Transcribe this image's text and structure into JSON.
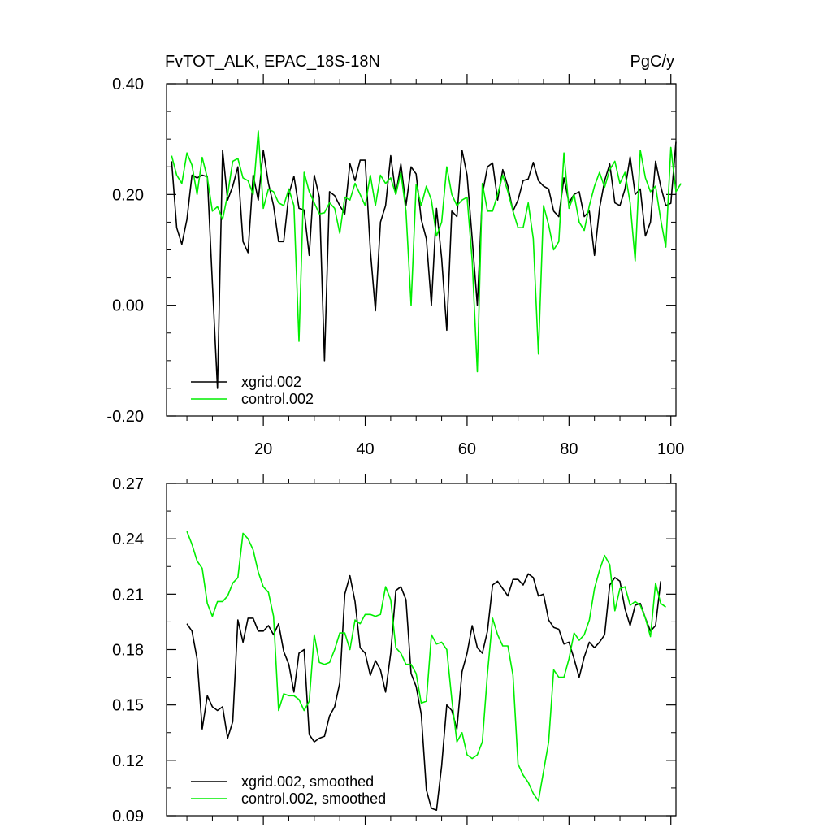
{
  "chart_data": [
    {
      "type": "line",
      "title_left": "FvTOT_ALK, EPAC_18S-18N",
      "title_right": "PgC/y",
      "xlim": [
        1,
        101
      ],
      "ylim": [
        -0.2,
        0.4
      ],
      "x_ticks": [
        20,
        40,
        60,
        80,
        100
      ],
      "x_tick_labels": [
        "20",
        "40",
        "60",
        "80",
        "100"
      ],
      "y_ticks": [
        -0.2,
        0.0,
        0.2,
        0.4
      ],
      "y_tick_labels": [
        "-0.20",
        "0.00",
        "0.20",
        "0.40"
      ],
      "legend_position": "bottom-left",
      "series": [
        {
          "name": "xgrid.002",
          "color": "#000000",
          "x_start": 2,
          "values": [
            0.26,
            0.14,
            0.11,
            0.155,
            0.235,
            0.23,
            0.235,
            0.232,
            0.04,
            -0.15,
            0.28,
            0.19,
            0.215,
            0.25,
            0.115,
            0.095,
            0.235,
            0.19,
            0.28,
            0.22,
            0.18,
            0.115,
            0.115,
            0.2,
            0.233,
            0.175,
            0.172,
            0.09,
            0.235,
            0.195,
            -0.1,
            0.205,
            0.198,
            0.18,
            0.165,
            0.256,
            0.225,
            0.262,
            0.262,
            0.1,
            -0.01,
            0.15,
            0.18,
            0.27,
            0.2,
            0.255,
            0.18,
            0.25,
            0.237,
            0.155,
            0.12,
            0,
            0.175,
            0.085,
            -0.045,
            0.17,
            0.16,
            0.28,
            0.235,
            0.12,
            0,
            0.2,
            0.25,
            0.257,
            0.19,
            0.245,
            0.215,
            0.17,
            0.19,
            0.225,
            0.228,
            0.258,
            0.225,
            0.215,
            0.21,
            0.17,
            0.16,
            0.23,
            0.185,
            0.2,
            0.205,
            0.16,
            0.17,
            0.09,
            0.175,
            0.225,
            0.255,
            0.185,
            0.18,
            0.21,
            0.268,
            0.2,
            0.21,
            0.125,
            0.15,
            0.26,
            0.215,
            0.18,
            0.184,
            0.295
          ]
        },
        {
          "name": "control.002",
          "color": "#00ee00",
          "x_start": 2,
          "values": [
            0.27,
            0.235,
            0.22,
            0.275,
            0.253,
            0.2,
            0.267,
            0.23,
            0.17,
            0.178,
            0.155,
            0.2,
            0.26,
            0.265,
            0.23,
            0.225,
            0.2,
            0.315,
            0.175,
            0.21,
            0.205,
            0.185,
            0.18,
            0.21,
            0.18,
            -0.065,
            0.24,
            0.205,
            0.185,
            0.165,
            0.167,
            0.185,
            0.175,
            0.13,
            0.195,
            0.19,
            0.22,
            0.2,
            0.18,
            0.235,
            0.18,
            0.235,
            0.22,
            0.23,
            0.2,
            0.24,
            0.17,
            0.0,
            0.218,
            0.18,
            0.215,
            0.19,
            0.125,
            0.15,
            0.25,
            0.2,
            0.18,
            0.19,
            0.195,
            0.08,
            -0.12,
            0.22,
            0.17,
            0.17,
            0.2,
            0.235,
            0.205,
            0.17,
            0.14,
            0.14,
            0.185,
            0.12,
            -0.088,
            0.18,
            0.145,
            0.1,
            0.115,
            0.275,
            0.175,
            0.2,
            0.15,
            0.135,
            0.18,
            0.215,
            0.24,
            0.213,
            0.245,
            0.26,
            0.22,
            0.24,
            0.185,
            0.08,
            0.28,
            0.23,
            0.205,
            0.215,
            0.155,
            0.105,
            0.285,
            0.205,
            0.22
          ]
        }
      ]
    },
    {
      "type": "line",
      "xlim": [
        1,
        101
      ],
      "ylim": [
        0.09,
        0.27
      ],
      "x_ticks": [
        20,
        40,
        60,
        80,
        100
      ],
      "y_ticks": [
        0.09,
        0.12,
        0.15,
        0.18,
        0.21,
        0.24,
        0.27
      ],
      "y_tick_labels": [
        "0.09",
        "0.12",
        "0.15",
        "0.18",
        "0.21",
        "0.24",
        "0.27"
      ],
      "legend_position": "bottom-left",
      "series": [
        {
          "name": "xgrid.002, smoothed",
          "color": "#000000",
          "x_start": 5,
          "values": [
            0.194,
            0.19,
            0.175,
            0.137,
            0.155,
            0.149,
            0.147,
            0.149,
            0.132,
            0.141,
            0.196,
            0.184,
            0.197,
            0.197,
            0.19,
            0.19,
            0.193,
            0.188,
            0.194,
            0.179,
            0.172,
            0.157,
            0.178,
            0.18,
            0.134,
            0.13,
            0.132,
            0.133,
            0.144,
            0.149,
            0.162,
            0.21,
            0.22,
            0.206,
            0.181,
            0.178,
            0.166,
            0.174,
            0.169,
            0.157,
            0.178,
            0.212,
            0.214,
            0.207,
            0.167,
            0.16,
            0.145,
            0.104,
            0.094,
            0.093,
            0.117,
            0.15,
            0.147,
            0.137,
            0.168,
            0.178,
            0.193,
            0.181,
            0.178,
            0.19,
            0.215,
            0.217,
            0.213,
            0.209,
            0.218,
            0.218,
            0.215,
            0.221,
            0.219,
            0.209,
            0.21,
            0.196,
            0.192,
            0.191,
            0.183,
            0.184,
            0.175,
            0.165,
            0.176,
            0.184,
            0.181,
            0.184,
            0.188,
            0.215,
            0.219,
            0.217,
            0.202,
            0.193,
            0.204,
            0.205,
            0.197,
            0.19,
            0.193,
            0.217
          ]
        },
        {
          "name": "control.002, smoothed",
          "color": "#00ee00",
          "x_start": 5,
          "values": [
            0.244,
            0.237,
            0.228,
            0.224,
            0.205,
            0.198,
            0.206,
            0.206,
            0.209,
            0.216,
            0.219,
            0.243,
            0.24,
            0.234,
            0.222,
            0.214,
            0.211,
            0.198,
            0.147,
            0.156,
            0.155,
            0.155,
            0.153,
            0.147,
            0.152,
            0.188,
            0.173,
            0.172,
            0.173,
            0.18,
            0.189,
            0.189,
            0.18,
            0.196,
            0.194,
            0.199,
            0.199,
            0.198,
            0.199,
            0.214,
            0.207,
            0.181,
            0.178,
            0.172,
            0.172,
            0.167,
            0.151,
            0.152,
            0.188,
            0.183,
            0.184,
            0.18,
            0.153,
            0.13,
            0.135,
            0.123,
            0.121,
            0.123,
            0.13,
            0.167,
            0.197,
            0.188,
            0.182,
            0.182,
            0.166,
            0.118,
            0.112,
            0.108,
            0.102,
            0.098,
            0.114,
            0.13,
            0.169,
            0.165,
            0.165,
            0.175,
            0.189,
            0.185,
            0.188,
            0.196,
            0.213,
            0.223,
            0.231,
            0.226,
            0.201,
            0.213,
            0.214,
            0.204,
            0.206,
            0.204,
            0.197,
            0.187,
            0.216,
            0.205,
            0.203
          ]
        }
      ]
    }
  ]
}
